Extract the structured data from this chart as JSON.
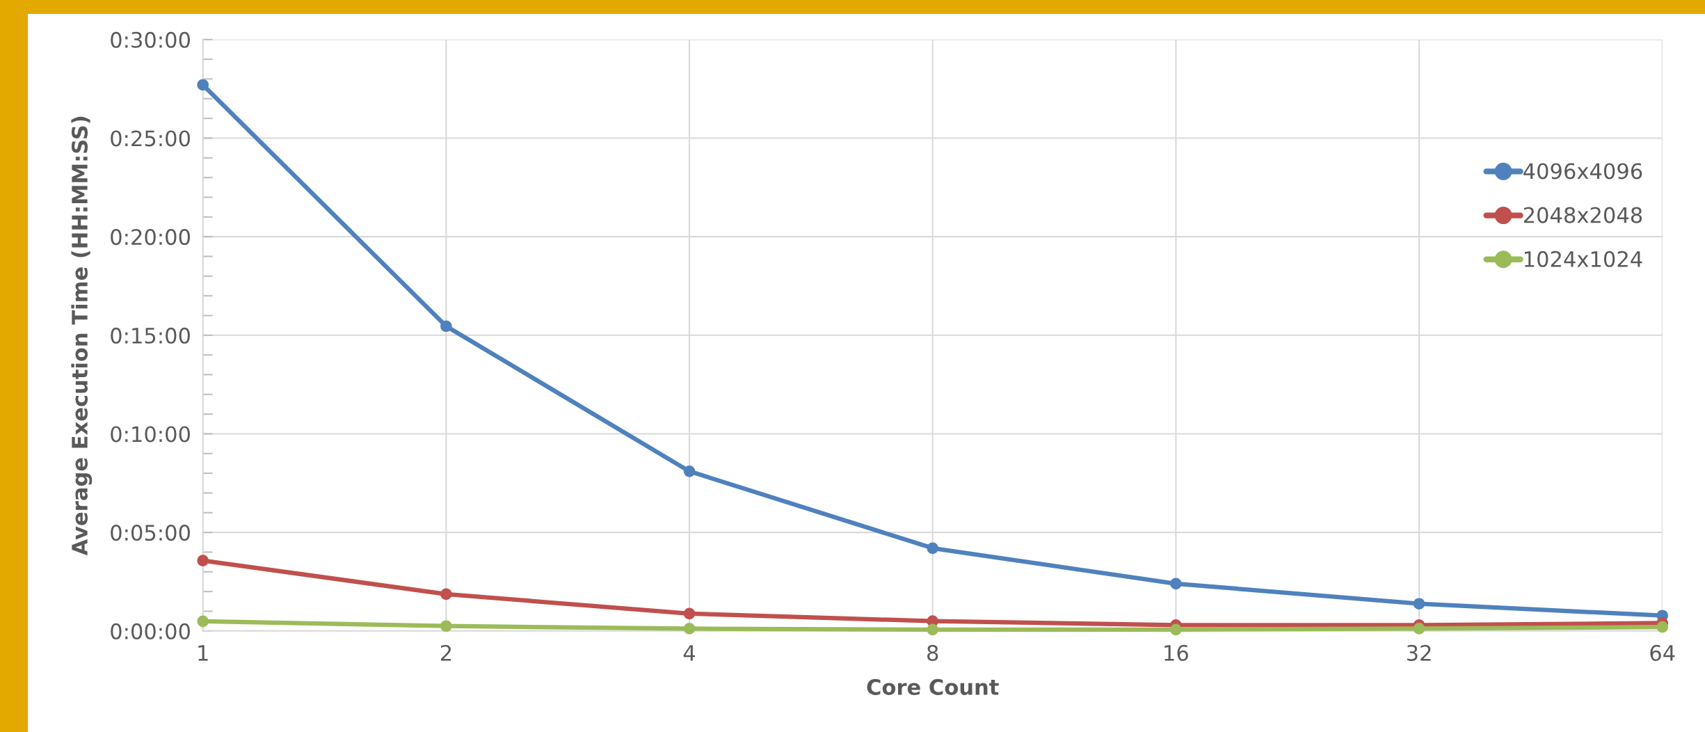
{
  "chart_data": {
    "type": "line",
    "xlabel": "Core Count",
    "ylabel": "Average Execution Time (HH:MM:SS)",
    "categories": [
      "1",
      "2",
      "4",
      "8",
      "16",
      "32",
      "64"
    ],
    "series": [
      {
        "name": "4096x4096",
        "color": "#4f81bd",
        "values": [
          27.7,
          15.46,
          8.1,
          4.2,
          2.4,
          1.38,
          0.78
        ]
      },
      {
        "name": "2048x2048",
        "color": "#c0504d",
        "values": [
          3.57,
          1.87,
          0.88,
          0.5,
          0.3,
          0.3,
          0.4
        ]
      },
      {
        "name": "1024x1024",
        "color": "#9bbb59",
        "values": [
          0.49,
          0.25,
          0.12,
          0.07,
          0.07,
          0.12,
          0.2
        ]
      }
    ],
    "ylim": [
      0,
      30
    ],
    "yticks": [
      {
        "value": 0,
        "label": "0:00:00"
      },
      {
        "value": 1,
        "label": null
      },
      {
        "value": 2,
        "label": null
      },
      {
        "value": 3,
        "label": null
      },
      {
        "value": 4,
        "label": null
      },
      {
        "value": 5,
        "label": "0:05:00"
      },
      {
        "value": 6,
        "label": null
      },
      {
        "value": 7,
        "label": null
      },
      {
        "value": 8,
        "label": null
      },
      {
        "value": 9,
        "label": null
      },
      {
        "value": 10,
        "label": "0:10:00"
      },
      {
        "value": 11,
        "label": null
      },
      {
        "value": 12,
        "label": null
      },
      {
        "value": 13,
        "label": null
      },
      {
        "value": 14,
        "label": null
      },
      {
        "value": 15,
        "label": "0:15:00"
      },
      {
        "value": 16,
        "label": null
      },
      {
        "value": 17,
        "label": null
      },
      {
        "value": 18,
        "label": null
      },
      {
        "value": 19,
        "label": null
      },
      {
        "value": 20,
        "label": "0:20:00"
      },
      {
        "value": 21,
        "label": null
      },
      {
        "value": 22,
        "label": null
      },
      {
        "value": 23,
        "label": null
      },
      {
        "value": 24,
        "label": null
      },
      {
        "value": 25,
        "label": "0:25:00"
      },
      {
        "value": 26,
        "label": null
      },
      {
        "value": 27,
        "label": null
      },
      {
        "value": 28,
        "label": null
      },
      {
        "value": 29,
        "label": null
      },
      {
        "value": 30,
        "label": "0:30:00"
      }
    ],
    "grid": true,
    "legend": "right",
    "marker": "circle",
    "line_style": "solid"
  }
}
